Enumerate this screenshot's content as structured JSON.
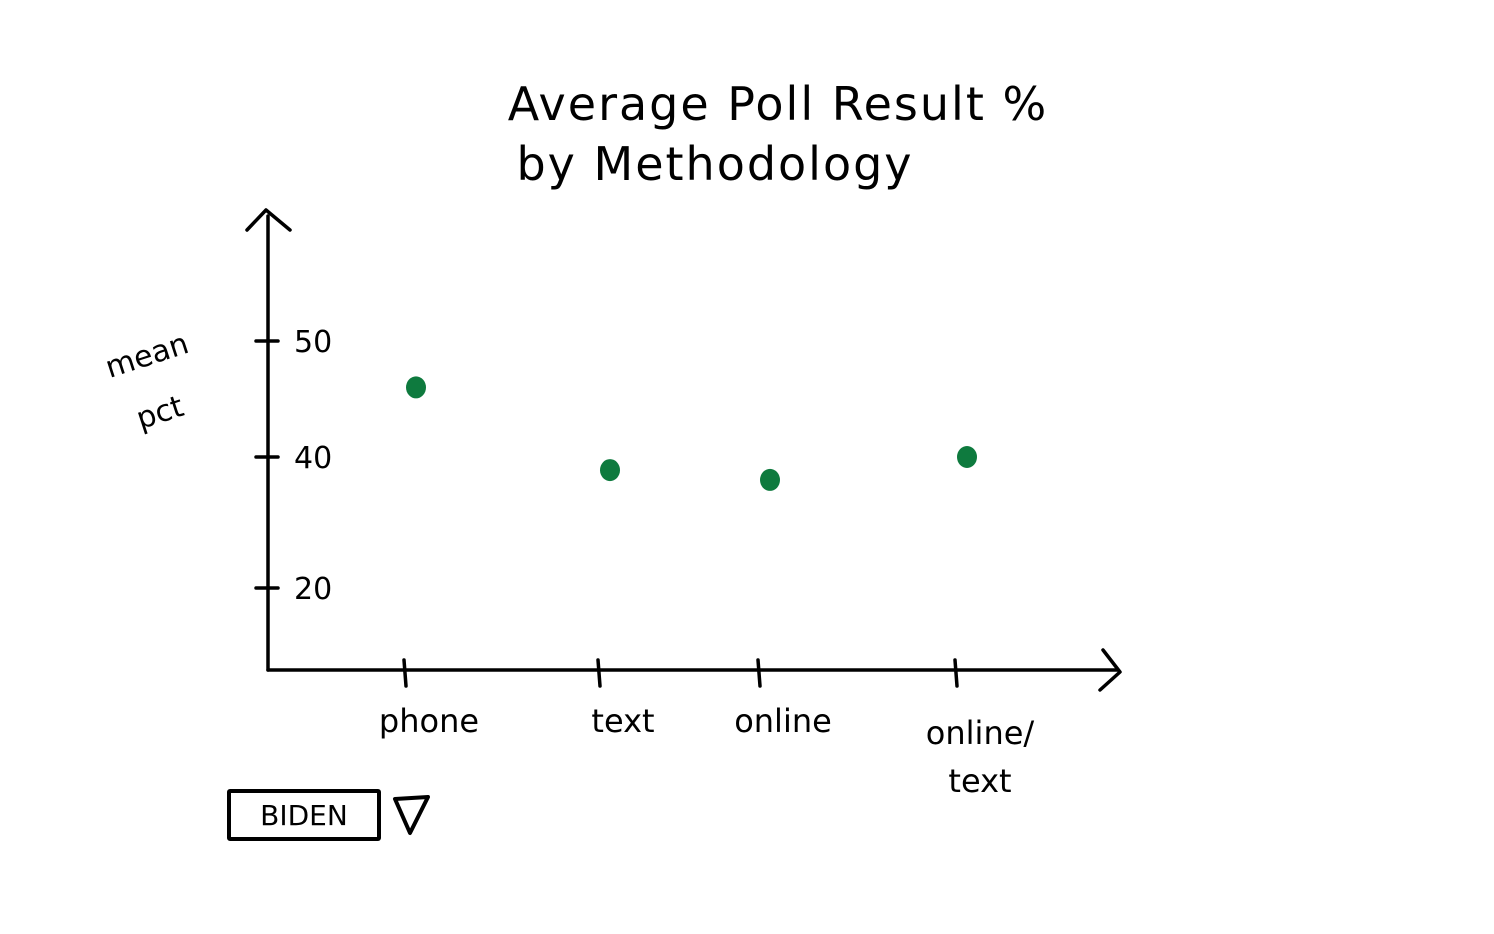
{
  "chart_data": {
    "type": "scatter",
    "title": [
      "Average Poll Result %",
      "by Methodology"
    ],
    "xlabel": "",
    "ylabel": [
      "mean",
      "pct"
    ],
    "categories": [
      "phone",
      "text",
      "online",
      "online/ text"
    ],
    "category_lines": [
      [
        "phone"
      ],
      [
        "text"
      ],
      [
        "online"
      ],
      [
        "online/",
        "text"
      ]
    ],
    "values": [
      46,
      38,
      36.5,
      40
    ],
    "yticks": [
      20,
      40,
      50
    ],
    "legend": "none",
    "grid": false,
    "point_color": "#0e7a3e"
  },
  "controls": {
    "selector_value": "BIDEN"
  }
}
